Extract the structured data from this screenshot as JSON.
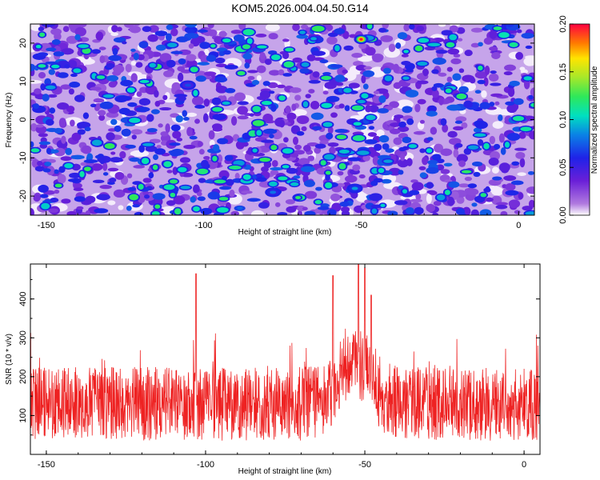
{
  "title": "KOM5.2026.004.04.50.G14",
  "chart_data": [
    {
      "type": "heatmap",
      "xlabel": "Height of straight line (km)",
      "ylabel": "Frequency (Hz)",
      "xlim": [
        -155,
        5
      ],
      "ylim": [
        -25,
        25
      ],
      "xticks": [
        -150,
        -100,
        -50,
        0
      ],
      "xtick_labels": [
        "-150",
        "-100",
        "-50",
        "0"
      ],
      "yticks": [
        -20,
        -10,
        0,
        10,
        20
      ],
      "ytick_labels": [
        "-20",
        "-10",
        "0",
        "10",
        "20"
      ],
      "colorbar": {
        "label": "Normalized spectral amplitude",
        "range": [
          0.0,
          0.2
        ],
        "ticks": [
          0.0,
          0.05,
          0.1,
          0.15,
          0.2
        ],
        "tick_labels": [
          "0.00",
          "0.05",
          "0.10",
          "0.15",
          "0.20"
        ]
      },
      "peak": {
        "x": -50,
        "y": 21,
        "value": 0.2
      },
      "secondary_peaks": [
        {
          "x": -52,
          "y": -18,
          "value": 0.09
        },
        {
          "x": -78,
          "y": -19,
          "value": 0.08
        },
        {
          "x": -105,
          "y": 9,
          "value": 0.07
        }
      ]
    },
    {
      "type": "line",
      "xlabel": "Height of straight line (km)",
      "ylabel": "SNR (10 * v/v)",
      "xlim": [
        -155,
        5
      ],
      "ylim": [
        0,
        490
      ],
      "xticks": [
        -150,
        -100,
        -50,
        0
      ],
      "xtick_labels": [
        "-150",
        "-100",
        "-50",
        "0"
      ],
      "yticks": [
        100,
        200,
        300,
        400
      ],
      "ytick_labels": [
        "100",
        "200",
        "300",
        "400"
      ],
      "series": [
        {
          "name": "SNR",
          "color": "#ee2222",
          "typical_range": [
            20,
            280
          ],
          "peaks": [
            {
              "x": -103,
              "y": 465
            },
            {
              "x": -60,
              "y": 460
            },
            {
              "x": -52,
              "y": 490
            },
            {
              "x": -50,
              "y": 480
            },
            {
              "x": -48,
              "y": 410
            }
          ]
        }
      ]
    }
  ]
}
